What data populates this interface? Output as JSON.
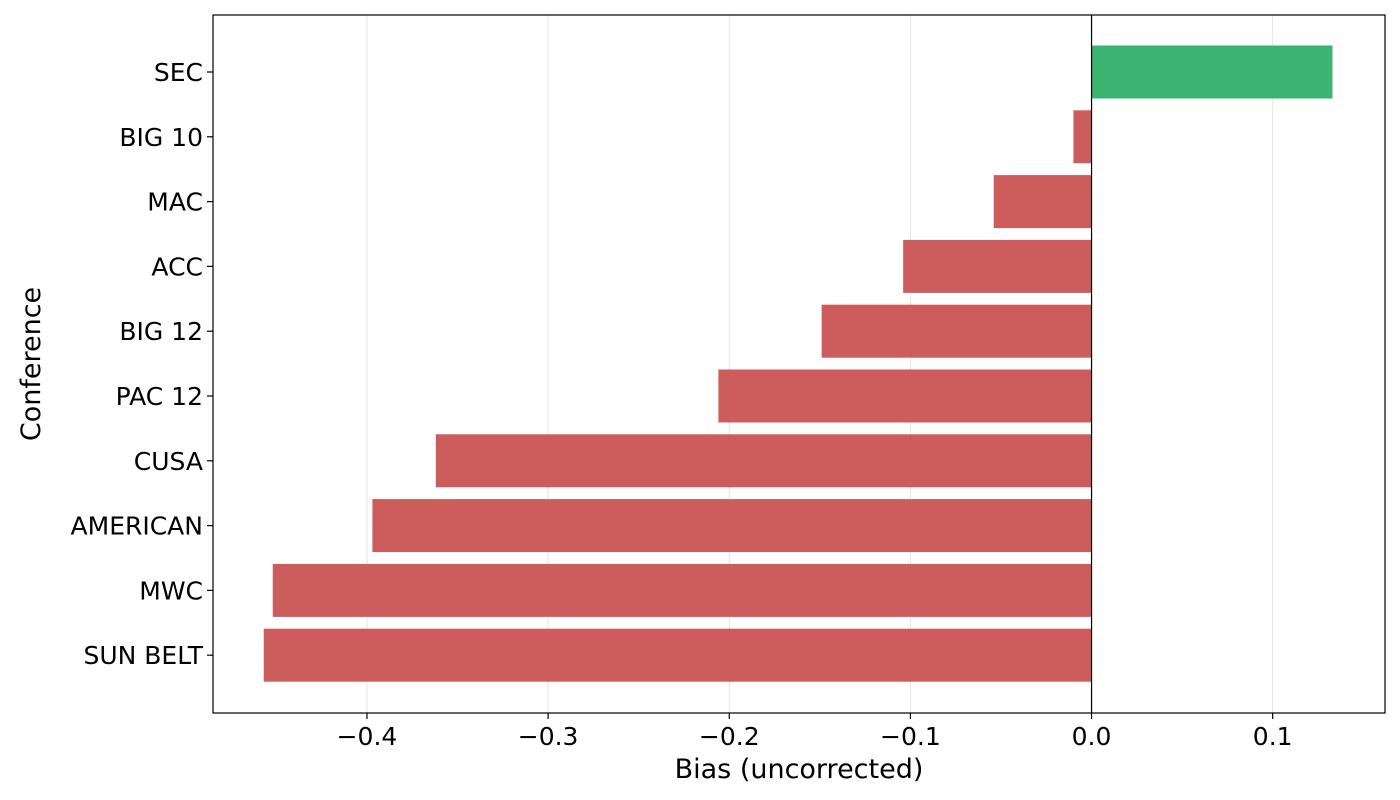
{
  "chart_data": {
    "type": "bar",
    "orientation": "horizontal",
    "xlabel": "Bias (uncorrected)",
    "ylabel": "Conference",
    "xlim": [
      -0.485,
      0.162
    ],
    "x_ticks": [
      -0.4,
      -0.3,
      -0.2,
      -0.1,
      0.0,
      0.1
    ],
    "x_tick_labels": [
      "−0.4",
      "−0.3",
      "−0.2",
      "−0.1",
      "0.0",
      "0.1"
    ],
    "grid": "vertical",
    "categories": [
      "SEC",
      "BIG 10",
      "MAC",
      "ACC",
      "BIG 12",
      "PAC 12",
      "CUSA",
      "AMERICAN",
      "MWC",
      "SUN BELT"
    ],
    "values": [
      0.133,
      -0.01,
      -0.054,
      -0.104,
      -0.149,
      -0.206,
      -0.362,
      -0.397,
      -0.452,
      -0.457
    ],
    "colors": {
      "positive": "#3cb371",
      "negative": "#cd5c5c"
    }
  }
}
